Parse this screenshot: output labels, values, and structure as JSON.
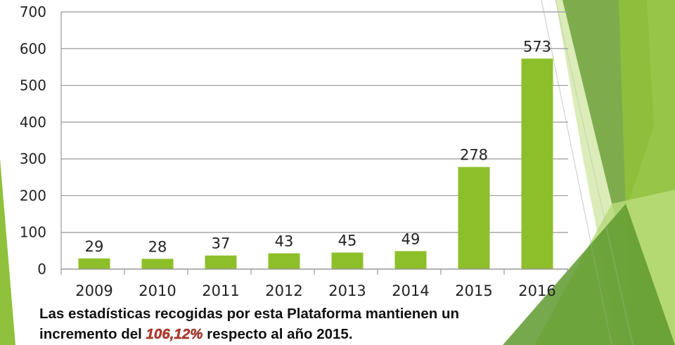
{
  "chart_data": {
    "type": "bar",
    "categories": [
      "2009",
      "2010",
      "2011",
      "2012",
      "2013",
      "2014",
      "2015",
      "2016"
    ],
    "values": [
      29,
      28,
      37,
      43,
      45,
      49,
      278,
      573
    ],
    "ylim": [
      0,
      700
    ],
    "yticks": [
      0,
      100,
      200,
      300,
      400,
      500,
      600,
      700
    ],
    "grid": true,
    "data_labels": true,
    "bar_color": "#8dbf2a",
    "grid_color": "#999999"
  },
  "caption": {
    "line1": "Las estadísticas recogidas por esta Plataforma mantienen un",
    "line2_prefix": "incremento del ",
    "highlight": "106,12%",
    "line2_suffix": " respecto al año 2015."
  },
  "colors": {
    "accent_green": "#8dbf2a",
    "dark_green": "#5e9a2e",
    "highlight_red": "#c0392b"
  }
}
